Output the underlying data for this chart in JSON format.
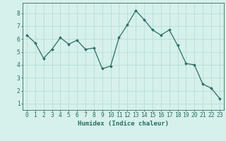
{
  "x": [
    0,
    1,
    2,
    3,
    4,
    5,
    6,
    7,
    8,
    9,
    10,
    11,
    12,
    13,
    14,
    15,
    16,
    17,
    18,
    19,
    20,
    21,
    22,
    23
  ],
  "y": [
    6.3,
    5.7,
    4.5,
    5.2,
    6.1,
    5.6,
    5.9,
    5.2,
    5.3,
    3.7,
    3.9,
    6.1,
    7.1,
    8.2,
    7.5,
    6.7,
    6.3,
    6.7,
    5.5,
    4.1,
    4.0,
    2.5,
    2.2,
    1.4
  ],
  "line_color": "#2a6e63",
  "marker_color": "#2a6e63",
  "bg_color": "#d6f0eb",
  "grid_color": "#b8ddd8",
  "xlabel": "Humidex (Indice chaleur)",
  "xlim": [
    -0.5,
    23.5
  ],
  "ylim": [
    0.5,
    8.8
  ],
  "xticks": [
    0,
    1,
    2,
    3,
    4,
    5,
    6,
    7,
    8,
    9,
    10,
    11,
    12,
    13,
    14,
    15,
    16,
    17,
    18,
    19,
    20,
    21,
    22,
    23
  ],
  "yticks": [
    1,
    2,
    3,
    4,
    5,
    6,
    7,
    8
  ],
  "tick_color": "#2a6e63",
  "label_fontsize": 6.5,
  "tick_fontsize": 5.8
}
